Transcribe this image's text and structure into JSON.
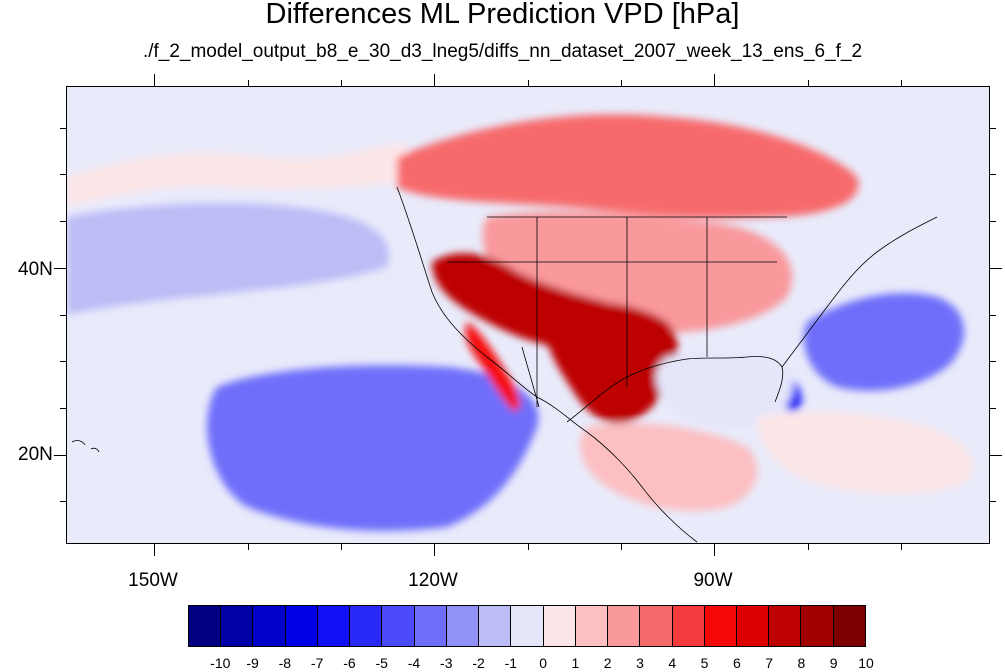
{
  "title": "Differences ML Prediction VPD [hPa]",
  "subtitle": "./f_2_model_output_b8_e_30_d3_lneg5/diffs_nn_dataset_2007_week_13_ens_6_f_2",
  "map": {
    "projection": "cylindrical equidistant",
    "lon_range": [
      -159.5,
      -60.5
    ],
    "lat_range": [
      10.5,
      59.5
    ],
    "lon_labels": [
      "150W",
      "120W",
      "90W"
    ],
    "lat_labels": [
      "40N",
      "20N"
    ],
    "field_name": "VPD difference",
    "units": "hPa"
  },
  "colorbar": {
    "labels": [
      "-10",
      "-9",
      "-8",
      "-7",
      "-6",
      "-5",
      "-4",
      "-3",
      "-2",
      "-1",
      "0",
      "1",
      "2",
      "3",
      "4",
      "5",
      "6",
      "7",
      "8",
      "9",
      "10"
    ],
    "colors": [
      "#000080",
      "#0000a6",
      "#0000c8",
      "#0000e6",
      "#1111f5",
      "#2a2af8",
      "#4b4bfc",
      "#6e6efa",
      "#9292f6",
      "#bcbcf6",
      "#e4e6fa",
      "#fde6e8",
      "#fcbfc2",
      "#f9999c",
      "#f76a6c",
      "#f53b3d",
      "#f50808",
      "#dc0000",
      "#bd0000",
      "#a00000",
      "#7d0000"
    ]
  },
  "regions": [
    {
      "name": "north-pacific-warm-tongue",
      "value": 1
    },
    {
      "name": "north-pacific-cool-band",
      "value": -1
    },
    {
      "name": "subtropical-pacific-cool-core",
      "value": -5
    },
    {
      "name": "eastern-pacific-cool-pool",
      "value": -3
    },
    {
      "name": "canada-warm-anomaly",
      "value": 4
    },
    {
      "name": "plains-warm-anomaly",
      "value": 3
    },
    {
      "name": "southwest-hot-core",
      "value": 8
    },
    {
      "name": "texas-hot-core",
      "value": 8
    },
    {
      "name": "baja-california-warm-strip",
      "value": 6
    },
    {
      "name": "atlantic-cool-anomaly",
      "value": -3
    },
    {
      "name": "florida-cool-spot",
      "value": -5
    },
    {
      "name": "gulf-of-mexico-near-zero",
      "value": 0
    },
    {
      "name": "central-america-warm-anomaly",
      "value": 2
    },
    {
      "name": "caribbean-warm-anomaly",
      "value": 1
    }
  ]
}
